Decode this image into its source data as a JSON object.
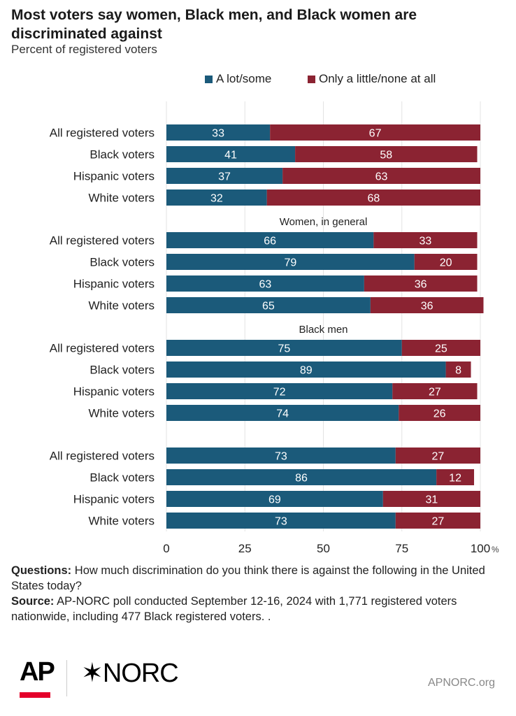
{
  "header": {
    "title": "Most voters say women, Black men, and Black women are discriminated against",
    "subtitle": "Percent of registered voters"
  },
  "legend": {
    "items": [
      {
        "label": "A lot/some",
        "color": "#1b5a7a"
      },
      {
        "label": "Only a little/none at all",
        "color": "#8b2332"
      }
    ]
  },
  "chart_data": {
    "type": "bar",
    "orientation": "horizontal",
    "stacked": true,
    "xlim": [
      0,
      100
    ],
    "x_ticks": [
      "0",
      "25",
      "50",
      "75",
      "100"
    ],
    "x_unit": "%",
    "series_names": [
      "A lot/some",
      "Only a little/none at all"
    ],
    "colors": [
      "#1b5a7a",
      "#8b2332"
    ],
    "groups": [
      {
        "label": "",
        "rows": [
          {
            "label": "All registered voters",
            "values": [
              33,
              67
            ]
          },
          {
            "label": "Black voters",
            "values": [
              41,
              58
            ]
          },
          {
            "label": "Hispanic voters",
            "values": [
              37,
              63
            ]
          },
          {
            "label": "White voters",
            "values": [
              32,
              68
            ]
          }
        ]
      },
      {
        "label": "Women, in general",
        "rows": [
          {
            "label": "All registered voters",
            "values": [
              66,
              33
            ]
          },
          {
            "label": "Black voters",
            "values": [
              79,
              20
            ]
          },
          {
            "label": "Hispanic voters",
            "values": [
              63,
              36
            ]
          },
          {
            "label": "White voters",
            "values": [
              65,
              36
            ]
          }
        ]
      },
      {
        "label": "Black men",
        "rows": [
          {
            "label": "All registered voters",
            "values": [
              75,
              25
            ]
          },
          {
            "label": "Black voters",
            "values": [
              89,
              8
            ]
          },
          {
            "label": "Hispanic voters",
            "values": [
              72,
              27
            ]
          },
          {
            "label": "White voters",
            "values": [
              74,
              26
            ]
          }
        ]
      },
      {
        "label": "",
        "rows": [
          {
            "label": "All registered voters",
            "values": [
              73,
              27
            ]
          },
          {
            "label": "Black voters",
            "values": [
              86,
              12
            ]
          },
          {
            "label": "Hispanic voters",
            "values": [
              69,
              31
            ]
          },
          {
            "label": "White voters",
            "values": [
              73,
              27
            ]
          }
        ]
      }
    ]
  },
  "footer": {
    "questions_label": "Questions:",
    "questions_text": " How much discrimination do you think there is against the following in the United States today?",
    "source_label": "Source:",
    "source_text": " AP-NORC poll conducted September 12-16, 2024 with 1,771 registered voters nationwide, including 477 Black registered voters. ."
  },
  "logos": {
    "ap": "AP",
    "norc": "✶NORC",
    "url": "APNORC.org"
  }
}
